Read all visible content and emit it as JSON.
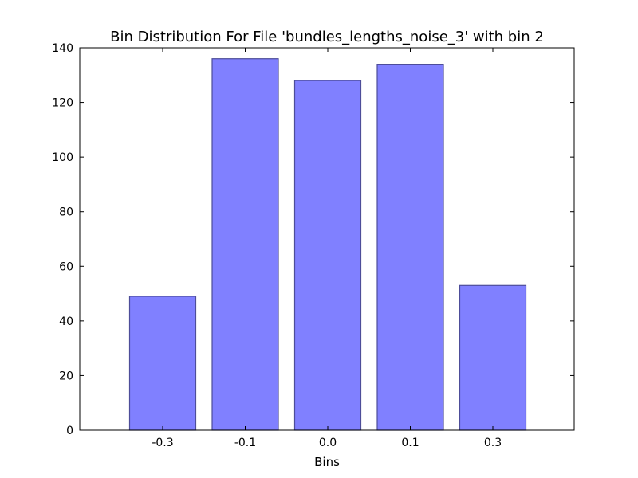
{
  "chart_data": {
    "type": "bar",
    "title": "Bin Distribution For File 'bundles_lengths_noise_3' with bin 2",
    "xlabel": "Bins",
    "ylabel": "",
    "categories": [
      "-0.3",
      "-0.1",
      "0.0",
      "0.1",
      "0.3"
    ],
    "values": [
      49,
      136,
      128,
      134,
      53
    ],
    "ylim": [
      0,
      140
    ],
    "yticks": [
      "0",
      "20",
      "40",
      "60",
      "80",
      "100",
      "120",
      "140"
    ],
    "grid": false,
    "legend": "none",
    "colors": {
      "bar_fill": "#8080ff",
      "bar_edge": "#4d4d99",
      "axis": "#000000"
    }
  }
}
